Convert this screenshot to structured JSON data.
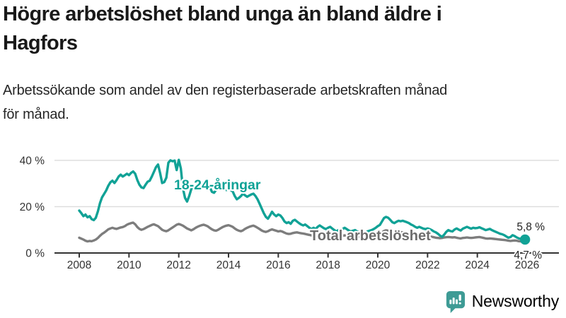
{
  "header": {
    "title_line1": "Högre arbetslöshet bland unga än bland äldre i",
    "title_line2": "Hagfors",
    "subtitle_line1": "Arbetssökande som andel av den registerbaserade arbetskraften månad",
    "subtitle_line2": "för månad."
  },
  "footer": {
    "brand_name": "Newsworthy",
    "brand_color": "#3e9b95",
    "logo_icon": "bar-chart-speech-bubble-icon"
  },
  "chart_data": {
    "type": "line",
    "title": "Högre arbetslöshet bland unga än bland äldre i Hagfors",
    "subtitle": "Arbetssökande som andel av den registerbaserade arbetskraften månad för månad.",
    "xlabel": "",
    "ylabel": "",
    "x_start_year": 2008,
    "x_months_per_point": 1,
    "x_ticks": [
      2008,
      2010,
      2012,
      2014,
      2016,
      2018,
      2020,
      2022,
      2024,
      2026
    ],
    "y_ticks": [
      {
        "value": 0,
        "label": "0 %"
      },
      {
        "value": 20,
        "label": "20 %"
      },
      {
        "value": 40,
        "label": "40 %"
      }
    ],
    "ylim": [
      0,
      43
    ],
    "grid": "horizontal",
    "axis_color": "#333333",
    "grid_color": "#dcdcdc",
    "end_labels": [
      "5,8 %",
      "4,7 %"
    ],
    "end_dot": {
      "series": 0,
      "color": "#11a296",
      "radius": 7.2
    },
    "series": [
      {
        "name": "18-24-åringar",
        "color": "#11a296",
        "label_color": "#0fa296",
        "values": [
          18.3,
          17.2,
          15.9,
          16.6,
          15.4,
          15.9,
          14.6,
          14.2,
          15.2,
          18.0,
          21.5,
          24.0,
          25.5,
          27.0,
          29.0,
          30.5,
          31.2,
          30.2,
          31.5,
          33.0,
          33.8,
          33.0,
          33.6,
          34.2,
          33.6,
          34.6,
          35.2,
          34.2,
          31.5,
          29.5,
          28.3,
          28.0,
          29.5,
          30.8,
          31.2,
          33.0,
          35.0,
          37.0,
          38.2,
          34.5,
          30.2,
          30.6,
          32.5,
          39.0,
          40.0,
          39.6,
          39.9,
          35.8,
          40.2,
          36.5,
          28.0,
          23.8,
          22.2,
          24.5,
          27.5,
          29.3,
          28.6,
          29.5,
          30.2,
          29.8,
          30.4,
          31.0,
          30.2,
          28.4,
          26.4,
          26.0,
          27.2,
          28.8,
          28.4,
          28.0,
          27.6,
          27.2,
          27.6,
          27.2,
          26.6,
          24.6,
          23.2,
          23.8,
          24.6,
          25.6,
          24.9,
          24.3,
          24.8,
          25.3,
          25.6,
          24.6,
          23.2,
          21.2,
          19.2,
          17.2,
          15.6,
          14.8,
          16.2,
          17.8,
          16.6,
          15.9,
          16.6,
          16.2,
          15.1,
          13.6,
          12.9,
          13.3,
          12.6,
          13.9,
          14.3,
          13.6,
          12.9,
          12.3,
          11.9,
          12.3,
          11.6,
          10.9,
          10.3,
          10.9,
          10.3,
          11.3,
          11.9,
          11.3,
          10.7,
          10.3,
          10.9,
          11.3,
          10.6,
          9.9,
          9.3,
          9.9,
          9.3,
          10.3,
          10.9,
          10.3,
          9.7,
          9.3,
          9.6,
          9.9,
          9.3,
          8.9,
          8.5,
          8.9,
          8.6,
          9.3,
          9.6,
          9.9,
          10.3,
          10.9,
          11.6,
          12.1,
          13.6,
          15.1,
          15.6,
          15.2,
          14.3,
          13.3,
          12.9,
          13.5,
          13.9,
          13.7,
          13.9,
          13.6,
          13.3,
          12.9,
          12.3,
          11.9,
          11.3,
          10.9,
          11.3,
          10.9,
          10.5,
          10.3,
          10.6,
          10.3,
          9.9,
          9.3,
          8.9,
          8.3,
          7.5,
          7.0,
          7.9,
          9.1,
          9.9,
          9.5,
          9.3,
          10.1,
          10.6,
          10.1,
          9.7,
          10.5,
          10.9,
          11.3,
          10.9,
          10.5,
          10.9,
          10.7,
          10.8,
          11.1,
          10.7,
          10.3,
          9.9,
          10.1,
          10.4,
          9.9,
          9.5,
          9.1,
          8.7,
          8.3,
          8.1,
          7.7,
          7.1,
          6.6,
          6.9,
          7.7,
          7.3,
          6.7,
          6.3,
          6.1,
          5.9,
          5.8
        ]
      },
      {
        "name": "Total arbetslöshet",
        "color": "#7d7d7d",
        "label_color": "#6d6d6d",
        "values": [
          6.6,
          6.2,
          5.8,
          5.3,
          5.0,
          5.2,
          5.1,
          5.4,
          5.8,
          6.5,
          7.4,
          8.2,
          8.8,
          9.5,
          10.2,
          10.6,
          10.9,
          10.6,
          10.4,
          10.7,
          11.0,
          11.2,
          11.6,
          12.2,
          12.6,
          12.9,
          13.1,
          12.4,
          11.2,
          10.4,
          10.0,
          10.3,
          10.8,
          11.3,
          11.7,
          12.1,
          12.4,
          12.0,
          11.6,
          10.8,
          10.0,
          9.6,
          9.4,
          9.8,
          10.4,
          11.0,
          11.6,
          12.2,
          12.5,
          12.2,
          11.8,
          11.2,
          10.6,
          10.2,
          9.8,
          10.2,
          10.8,
          11.3,
          11.7,
          12.0,
          12.2,
          11.9,
          11.5,
          10.8,
          10.2,
          9.8,
          9.6,
          10.0,
          10.6,
          11.1,
          11.5,
          11.8,
          12.0,
          11.7,
          11.3,
          10.6,
          10.0,
          9.6,
          9.4,
          9.8,
          10.4,
          10.9,
          11.3,
          11.6,
          11.8,
          11.4,
          10.9,
          10.3,
          9.7,
          9.3,
          9.1,
          9.4,
          9.9,
          10.2,
          9.9,
          9.6,
          9.3,
          9.5,
          9.2,
          8.8,
          8.4,
          8.2,
          8.3,
          8.6,
          8.8,
          8.9,
          8.7,
          8.5,
          8.4,
          8.2,
          8.0,
          7.8,
          7.6,
          7.7,
          7.9,
          8.1,
          8.3,
          8.1,
          7.9,
          7.8,
          7.9,
          8.0,
          7.8,
          7.5,
          7.3,
          7.1,
          7.2,
          7.4,
          7.6,
          7.5,
          7.3,
          7.2,
          7.3,
          7.4,
          7.2,
          7.0,
          6.9,
          7.0,
          7.1,
          7.3,
          7.5,
          7.6,
          7.7,
          7.9,
          8.1,
          8.3,
          8.9,
          9.5,
          9.8,
          9.6,
          9.4,
          9.1,
          8.9,
          9.0,
          9.1,
          9.0,
          8.9,
          8.8,
          8.6,
          8.4,
          8.1,
          7.9,
          7.7,
          7.6,
          7.7,
          7.6,
          7.5,
          7.4,
          7.3,
          7.2,
          7.0,
          6.8,
          6.6,
          6.5,
          6.4,
          6.5,
          6.7,
          6.8,
          6.9,
          6.8,
          6.7,
          6.8,
          6.6,
          6.4,
          6.3,
          6.5,
          6.6,
          6.7,
          6.6,
          6.5,
          6.6,
          6.7,
          6.8,
          6.9,
          6.7,
          6.5,
          6.3,
          6.2,
          6.3,
          6.2,
          6.1,
          6.0,
          5.9,
          5.8,
          5.7,
          5.6,
          5.5,
          5.3,
          5.2,
          5.3,
          5.4,
          5.3,
          5.1,
          5.0,
          4.8,
          4.7
        ]
      }
    ]
  }
}
